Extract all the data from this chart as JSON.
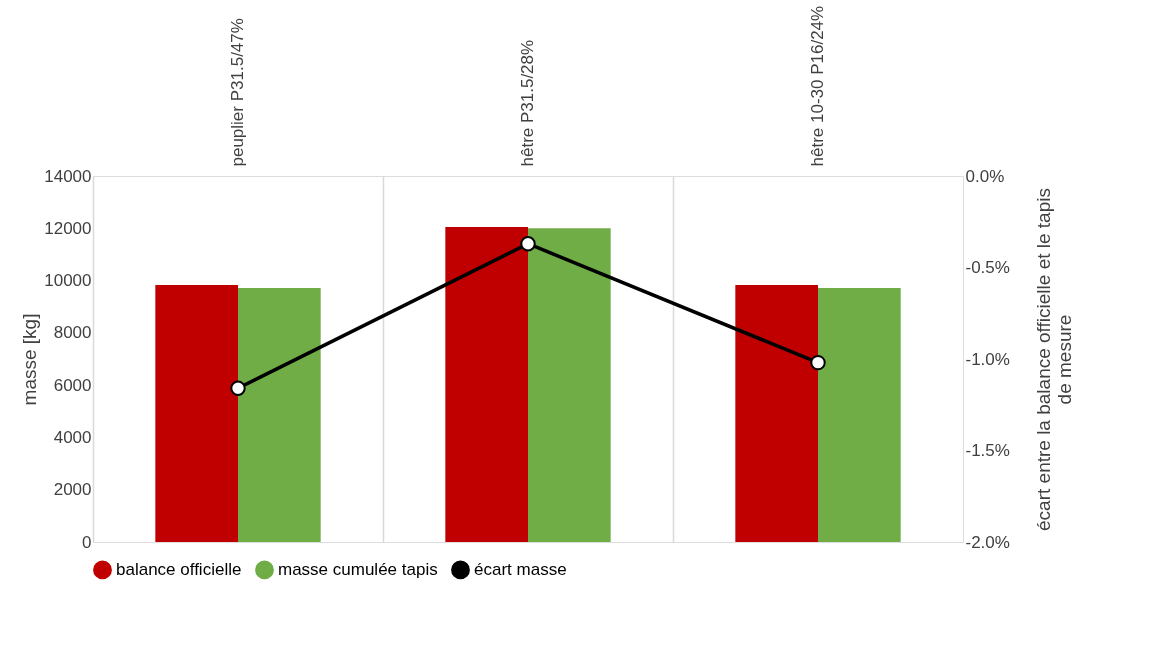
{
  "chart_data": {
    "type": "bar",
    "ylabel": "masse [kg]",
    "y2label": "écart entre la balance officielle et le tapis de mesure",
    "categories": [
      "peuplier P31.5/47%",
      "hêtre P31.5/28%",
      "hêtre 10-30 P16/24%"
    ],
    "series": [
      {
        "name": "balance officielle",
        "color": "#c00000",
        "values": [
          9830,
          12050,
          9830
        ]
      },
      {
        "name": "masse cumulée tapis",
        "color": "#70ad47",
        "values": [
          9720,
          12000,
          9720
        ]
      },
      {
        "name": "écart masse",
        "type": "line",
        "axis": "y2",
        "color": "#000000",
        "marker": "circle",
        "values": [
          -1.16,
          -0.37,
          -1.02
        ]
      }
    ],
    "ylim": [
      0,
      14000
    ],
    "yticks": [
      0,
      2000,
      4000,
      6000,
      8000,
      10000,
      12000,
      14000
    ],
    "y2lim": [
      -2.0,
      0.0
    ],
    "y2ticks": [
      {
        "value": -2.0,
        "label": "-2.0%"
      },
      {
        "value": -1.5,
        "label": "-1.5%"
      },
      {
        "value": -1.0,
        "label": "-1.0%"
      },
      {
        "value": -0.5,
        "label": "-0.5%"
      },
      {
        "value": 0.0,
        "label": "0.0%"
      }
    ],
    "grid": "x",
    "legend": "bottom"
  }
}
